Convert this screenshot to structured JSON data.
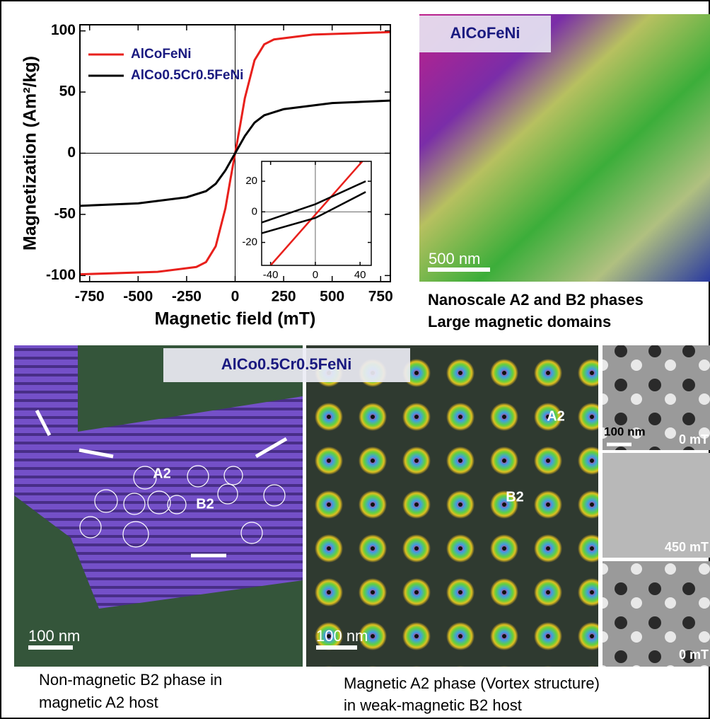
{
  "chart_data": [
    {
      "type": "line",
      "xlabel": "Magnetic field (mT)",
      "ylabel": "Magnetization (Am²/kg)",
      "xlim": [
        -800,
        800
      ],
      "ylim": [
        -105,
        105
      ],
      "xticks": [
        -750,
        -500,
        -250,
        0,
        250,
        500,
        750
      ],
      "yticks": [
        -100,
        -50,
        0,
        50,
        100
      ],
      "zero_lines": true,
      "legend": "upper left",
      "series": [
        {
          "name": "AlCoFeNi",
          "color": "#e8201c",
          "x": [
            -800,
            -400,
            -200,
            -150,
            -100,
            -50,
            -25,
            0,
            25,
            50,
            100,
            150,
            200,
            400,
            800
          ],
          "values": [
            -99,
            -97,
            -93,
            -89,
            -76,
            -45,
            -22,
            0,
            22,
            45,
            76,
            89,
            93,
            97,
            99
          ]
        },
        {
          "name": "AlCo0.5Cr0.5FeNi",
          "color": "#000000",
          "x": [
            -800,
            -500,
            -250,
            -150,
            -100,
            -50,
            0,
            50,
            100,
            150,
            250,
            500,
            800
          ],
          "values": [
            -43,
            -41,
            -36,
            -31,
            -25,
            -14,
            0,
            14,
            25,
            31,
            36,
            41,
            43
          ]
        }
      ]
    },
    {
      "type": "line",
      "xlim": [
        -48,
        50
      ],
      "ylim": [
        -35,
        33
      ],
      "xticks": [
        -40,
        0,
        40
      ],
      "yticks": [
        -20,
        0,
        20
      ],
      "zero_lines": true,
      "series": [
        {
          "color": "#e8201c",
          "x": [
            -40,
            42
          ],
          "values": [
            -35,
            33
          ]
        },
        {
          "color": "#000000",
          "x": [
            -48,
            0,
            45
          ],
          "values": [
            -7,
            5,
            20
          ]
        },
        {
          "color": "#000000",
          "x": [
            -48,
            0,
            45
          ],
          "values": [
            -14,
            -4,
            13
          ]
        }
      ]
    }
  ],
  "panels": {
    "domains": {
      "label": "AlCoFeNi",
      "scale_bar": "500 nm",
      "caption": [
        "Nanoscale A2 and B2 phases",
        "Large magnetic domains"
      ]
    },
    "b2_host": {
      "phases": [
        "A2",
        "B2"
      ],
      "scale_bar": "100 nm",
      "caption": [
        "Non-magnetic B2 phase in",
        "magnetic A2 host"
      ]
    },
    "vortex": {
      "label": "AlCo0.5Cr0.5FeNi",
      "phases": [
        "A2",
        "B2"
      ],
      "scale_bar": "100 nm",
      "caption": [
        "Magnetic A2 phase (Vortex structure)",
        "in weak-magnetic B2 host"
      ]
    },
    "field_series": {
      "scale_bar": "100 nm",
      "fields": [
        "0 mT",
        "450 mT",
        "0 mT"
      ]
    }
  }
}
